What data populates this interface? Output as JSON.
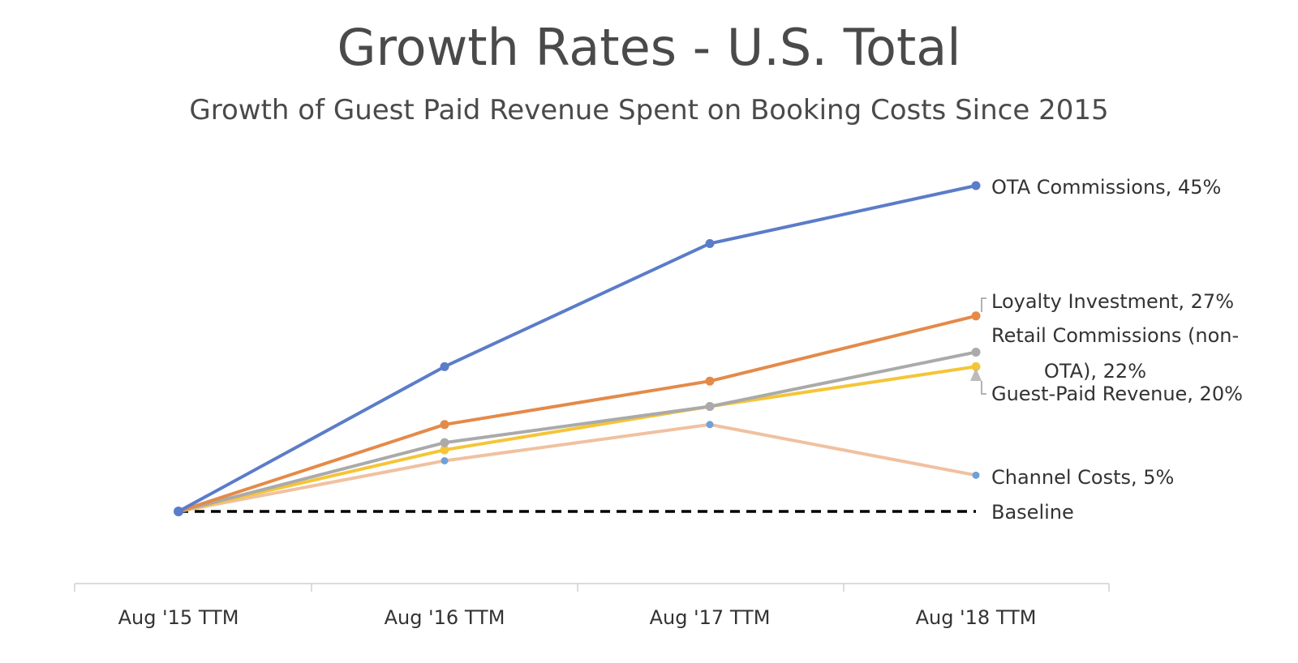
{
  "chart_data": {
    "type": "line",
    "title": "Growth Rates - U.S. Total",
    "subtitle": "Growth of Guest Paid Revenue Spent on Booking Costs Since 2015",
    "categories": [
      "Aug '15 TTM",
      "Aug '16 TTM",
      "Aug '17 TTM",
      "Aug '18 TTM"
    ],
    "ylim": [
      -10,
      45
    ],
    "grid": false,
    "series": [
      {
        "name": "OTA Commissions",
        "values": [
          0,
          20,
          37,
          45
        ],
        "color": "#5b7cc9",
        "end_label": "OTA Commissions, 45%"
      },
      {
        "name": "Loyalty Investment",
        "values": [
          0,
          12,
          18,
          27
        ],
        "color": "#e48a49",
        "end_label": "Loyalty Investment, 27%"
      },
      {
        "name": "Retail Commissions (non-OTA)",
        "values": [
          0,
          9.5,
          14.5,
          22
        ],
        "color": "#aaaaaa",
        "end_label_line1": "Retail Commissions (non-",
        "end_label_line2": "OTA), 22%"
      },
      {
        "name": "Guest-Paid Revenue",
        "values": [
          0,
          8.5,
          14.5,
          20
        ],
        "color": "#f5c537",
        "end_label": "Guest-Paid Revenue, 20%"
      },
      {
        "name": "Channel Costs",
        "values": [
          0,
          7,
          12,
          5
        ],
        "color": "#f0c1a0",
        "marker_color": "#6fa0d8",
        "end_label": "Channel Costs, 5%"
      },
      {
        "name": "Baseline",
        "values": [
          0,
          0,
          0,
          0
        ],
        "color": "#000000",
        "dashed": true,
        "end_label": "Baseline"
      }
    ]
  }
}
